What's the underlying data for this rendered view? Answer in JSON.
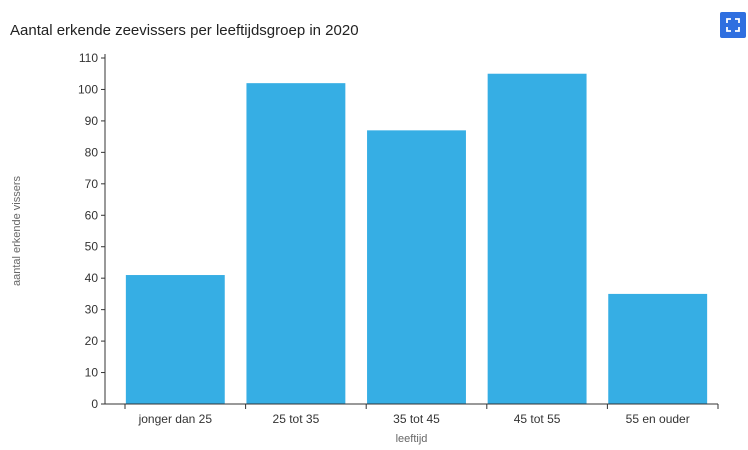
{
  "chart_data": {
    "type": "bar",
    "title": "Aantal erkende zeevissers per leeftijdsgroep in 2020",
    "categories": [
      "jonger dan 25",
      "25 tot 35",
      "35 tot 45",
      "45 tot 55",
      "55 en ouder"
    ],
    "values": [
      41,
      102,
      87,
      105,
      35
    ],
    "xlabel": "leeftijd",
    "ylabel": "aantal erkende vissers",
    "ylim": [
      0,
      110
    ],
    "yticks": [
      0,
      10,
      20,
      30,
      40,
      50,
      60,
      70,
      80,
      90,
      100,
      110
    ],
    "grid": false,
    "bar_color": "#36aee4"
  },
  "toolbar": {
    "expand_icon": "fullscreen-icon",
    "accent_color": "#2f6fe0"
  }
}
